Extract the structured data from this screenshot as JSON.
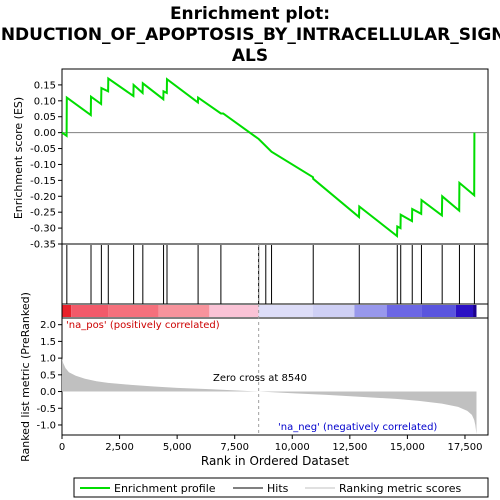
{
  "chart_data": {
    "type": "line",
    "title_line1": "Enrichment plot:",
    "title_line2": "INDUCTION_OF_APOPTOSIS_BY_INTRACELLULAR_SIGN",
    "title_line3": "ALS",
    "top_panel": {
      "ylabel": "Enrichment score (ES)",
      "ylim": [
        -0.35,
        0.2
      ],
      "yticks": [
        "0.15",
        "0.10",
        "0.05",
        "0.00",
        "-0.05",
        "-0.10",
        "-0.15",
        "-0.20",
        "-0.25",
        "-0.30",
        "-0.35"
      ],
      "ytick_values": [
        0.15,
        0.1,
        0.05,
        0.0,
        -0.05,
        -0.1,
        -0.15,
        -0.2,
        -0.25,
        -0.3,
        -0.35
      ],
      "es_profile": {
        "x": [
          0,
          200,
          210,
          1250,
          1260,
          1700,
          1710,
          2000,
          2010,
          3100,
          3110,
          3500,
          3510,
          4400,
          4410,
          4550,
          4560,
          5900,
          5910,
          6900,
          7000,
          8540,
          9100,
          10900,
          10910,
          12900,
          12910,
          14550,
          14560,
          14700,
          14710,
          15200,
          15210,
          15600,
          15610,
          16500,
          16510,
          17250,
          17260,
          17900,
          17910
        ],
        "y": [
          0.0,
          -0.01,
          0.11,
          0.055,
          0.113,
          0.09,
          0.14,
          0.13,
          0.17,
          0.115,
          0.15,
          0.125,
          0.155,
          0.105,
          0.13,
          0.125,
          0.168,
          0.095,
          0.11,
          0.06,
          0.06,
          -0.02,
          -0.06,
          -0.14,
          -0.145,
          -0.265,
          -0.232,
          -0.325,
          -0.295,
          -0.3,
          -0.258,
          -0.278,
          -0.24,
          -0.255,
          -0.212,
          -0.26,
          -0.2,
          -0.245,
          -0.158,
          -0.197,
          0.0
        ]
      }
    },
    "hits_positions": [
      210,
      1260,
      1710,
      2010,
      3110,
      3510,
      4410,
      4560,
      5910,
      6900,
      8540,
      8850,
      9100,
      10910,
      12910,
      14560,
      14710,
      15210,
      15610,
      16510,
      17260,
      17910
    ],
    "bottom_panel": {
      "ylabel": "Ranked list metric (PreRanked)",
      "xlabel": "Rank in Ordered Dataset",
      "ylim": [
        -1.3,
        2.2
      ],
      "yticks": [
        "2.0",
        "1.5",
        "1.0",
        "0.5",
        "0.0",
        "-0.5",
        "-1.0"
      ],
      "ytick_values": [
        2.0,
        1.5,
        1.0,
        0.5,
        0.0,
        -0.5,
        -1.0
      ],
      "xlim": [
        0,
        18500
      ],
      "xticks": [
        "0",
        "2,500",
        "5,000",
        "7,500",
        "10,000",
        "12,500",
        "15,000",
        "17,500"
      ],
      "xtick_values": [
        0,
        2500,
        5000,
        7500,
        10000,
        12500,
        15000,
        17500
      ],
      "metric_curve": {
        "x": [
          0,
          50,
          150,
          300,
          600,
          1000,
          1500,
          2000,
          3000,
          4000,
          5000,
          6500,
          8540,
          10000,
          11500,
          13000,
          14500,
          15500,
          16500,
          17200,
          17600,
          17800,
          17900,
          17950,
          18000
        ],
        "y": [
          1.0,
          0.85,
          0.7,
          0.58,
          0.47,
          0.38,
          0.31,
          0.26,
          0.2,
          0.15,
          0.11,
          0.07,
          0.0,
          -0.05,
          -0.1,
          -0.16,
          -0.22,
          -0.28,
          -0.36,
          -0.46,
          -0.58,
          -0.7,
          -0.85,
          -1.0,
          -1.28
        ]
      },
      "pos_label": "'na_pos' (positively correlated)",
      "neg_label": "'na_neg' (negatively correlated)",
      "zero_cross_label": "Zero cross at 8540",
      "zero_cross": 8540
    },
    "legend": {
      "items": [
        {
          "label": "Enrichment profile",
          "color": "#00dd00"
        },
        {
          "label": "Hits",
          "color": "#000000"
        },
        {
          "label": "Ranking metric scores",
          "color": "#c0c0c0"
        }
      ]
    },
    "colors": {
      "profile": "#00dd00",
      "pos_label": "#cc0000",
      "neg_label": "#0000cc",
      "metric_fill": "#c0c0c0"
    }
  }
}
